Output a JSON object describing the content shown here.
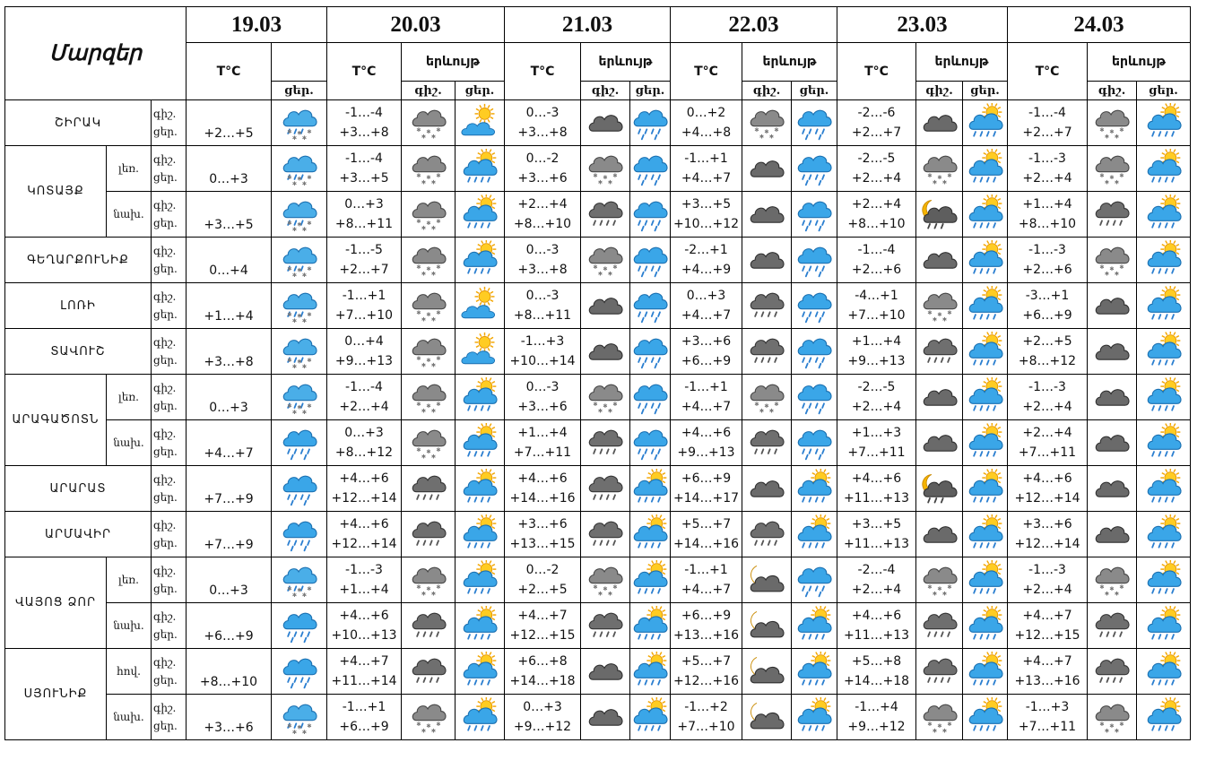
{
  "corner_label": "Մարզեր",
  "temp_header": "T°C",
  "weather_header": "երևույթ",
  "night_short": "գիշ.",
  "day_short": "ցեր.",
  "dates": [
    "19.03",
    "20.03",
    "21.03",
    "22.03",
    "23.03",
    "24.03"
  ],
  "rows": [
    {
      "region": "ՇԻՐԱԿ",
      "zone": "",
      "tod": [
        "գիշ.",
        "ցեր."
      ],
      "d1": {
        "t": "+2…+5",
        "icon": "snow-rain-icon"
      },
      "days": [
        {
          "tn": "-1…-4",
          "td": "+3…+8",
          "n": "snow-cloud-icon",
          "d": "sun-cloud-icon"
        },
        {
          "tn": "0…-3",
          "td": "+3…+8",
          "n": "dark-cloud-icon",
          "d": "rain-icon"
        },
        {
          "tn": "0…+2",
          "td": "+4…+8",
          "n": "snow-cloud-icon",
          "d": "rain-icon"
        },
        {
          "tn": "-2…-6",
          "td": "+2…+7",
          "n": "dark-cloud-icon",
          "d": "sun-rain-icon"
        },
        {
          "tn": "-1…-4",
          "td": "+2…+7",
          "n": "snow-cloud-icon",
          "d": "sun-rain-icon"
        }
      ]
    },
    {
      "region": "ԿՈՏԱՅՔ",
      "zone": "լեռ.",
      "tod": [
        "գիշ.",
        "ցեր."
      ],
      "d1": {
        "t": "0…+3",
        "icon": "snow-rain-icon"
      },
      "days": [
        {
          "tn": "-1…-4",
          "td": "+3…+5",
          "n": "snow-cloud-icon",
          "d": "sun-rain-icon"
        },
        {
          "tn": "0…-2",
          "td": "+3…+6",
          "n": "snow-cloud-icon",
          "d": "rain-icon"
        },
        {
          "tn": "-1…+1",
          "td": "+4…+7",
          "n": "dark-cloud-icon",
          "d": "rain-icon"
        },
        {
          "tn": "-2…-5",
          "td": "+2…+4",
          "n": "snow-cloud-icon",
          "d": "sun-rain-icon"
        },
        {
          "tn": "-1…-3",
          "td": "+2…+4",
          "n": "snow-cloud-icon",
          "d": "sun-rain-icon"
        }
      ]
    },
    {
      "region": "",
      "zone": "նախ.",
      "tod": [
        "գիշ.",
        "ցեր."
      ],
      "d1": {
        "t": "+3…+5",
        "icon": "snow-rain-icon"
      },
      "days": [
        {
          "tn": "0…+3",
          "td": "+8…+11",
          "n": "snow-cloud-icon",
          "d": "sun-rain-icon"
        },
        {
          "tn": "+2…+4",
          "td": "+8…+10",
          "n": "rain-cloud-icon",
          "d": "rain-icon"
        },
        {
          "tn": "+3…+5",
          "td": "+10…+12",
          "n": "dark-cloud-icon",
          "d": "rain-icon"
        },
        {
          "tn": "+2…+4",
          "td": "+8…+10",
          "n": "moon-rain-icon",
          "d": "sun-rain-icon"
        },
        {
          "tn": "+1…+4",
          "td": "+8…+10",
          "n": "rain-cloud-icon",
          "d": "sun-rain-icon"
        }
      ]
    },
    {
      "region": "ԳԵՂԱՐՔՈՒՆԻՔ",
      "zone": "",
      "tod": [
        "գիշ.",
        "ցեր."
      ],
      "d1": {
        "t": "0…+4",
        "icon": "snow-rain-icon"
      },
      "days": [
        {
          "tn": "-1…-5",
          "td": "+2…+7",
          "n": "snow-cloud-icon",
          "d": "sun-rain-icon"
        },
        {
          "tn": "0…-3",
          "td": "+3…+8",
          "n": "snow-cloud-icon",
          "d": "rain-icon"
        },
        {
          "tn": "-2…+1",
          "td": "+4…+9",
          "n": "dark-cloud-icon",
          "d": "rain-icon"
        },
        {
          "tn": "-1…-4",
          "td": "+2…+6",
          "n": "dark-cloud-icon",
          "d": "sun-rain-icon"
        },
        {
          "tn": "-1…-3",
          "td": "+2…+6",
          "n": "snow-cloud-icon",
          "d": "sun-rain-icon"
        }
      ]
    },
    {
      "region": "ԼՈՌԻ",
      "zone": "",
      "tod": [
        "գիշ.",
        "ցեր."
      ],
      "d1": {
        "t": "+1…+4",
        "icon": "snow-rain-icon"
      },
      "days": [
        {
          "tn": "-1…+1",
          "td": "+7…+10",
          "n": "snow-cloud-icon",
          "d": "sun-cloud-icon"
        },
        {
          "tn": "0…-3",
          "td": "+8…+11",
          "n": "dark-cloud-icon",
          "d": "rain-icon"
        },
        {
          "tn": "0…+3",
          "td": "+4…+7",
          "n": "rain-cloud-icon",
          "d": "rain-icon"
        },
        {
          "tn": "-4…+1",
          "td": "+7…+10",
          "n": "snow-cloud-icon",
          "d": "sun-rain-icon"
        },
        {
          "tn": "-3…+1",
          "td": "+6…+9",
          "n": "dark-cloud-icon",
          "d": "sun-rain-icon"
        }
      ]
    },
    {
      "region": "ՏԱՎՈՒՇ",
      "zone": "",
      "tod": [
        "գիշ.",
        "ցեր."
      ],
      "d1": {
        "t": "+3…+8",
        "icon": "snow-rain-icon"
      },
      "days": [
        {
          "tn": "0…+4",
          "td": "+9…+13",
          "n": "snow-cloud-icon",
          "d": "sun-cloud-icon"
        },
        {
          "tn": "-1…+3",
          "td": "+10…+14",
          "n": "dark-cloud-icon",
          "d": "rain-icon"
        },
        {
          "tn": "+3…+6",
          "td": "+6…+9",
          "n": "rain-cloud-icon",
          "d": "rain-icon"
        },
        {
          "tn": "+1…+4",
          "td": "+9…+13",
          "n": "rain-cloud-icon",
          "d": "sun-rain-icon"
        },
        {
          "tn": "+2…+5",
          "td": "+8…+12",
          "n": "dark-cloud-icon",
          "d": "sun-rain-icon"
        }
      ]
    },
    {
      "region": "ԱՐԱԳԱԾՈՏՆ",
      "zone": "լեռ.",
      "tod": [
        "գիշ.",
        "ցեր."
      ],
      "d1": {
        "t": "0…+3",
        "icon": "snow-rain-icon"
      },
      "days": [
        {
          "tn": "-1…-4",
          "td": "+2…+4",
          "n": "snow-cloud-icon",
          "d": "sun-rain-icon"
        },
        {
          "tn": "0…-3",
          "td": "+3…+6",
          "n": "snow-cloud-icon",
          "d": "rain-icon"
        },
        {
          "tn": "-1…+1",
          "td": "+4…+7",
          "n": "snow-cloud-icon",
          "d": "rain-icon"
        },
        {
          "tn": "-2…-5",
          "td": "+2…+4",
          "n": "dark-cloud-icon",
          "d": "sun-rain-icon"
        },
        {
          "tn": "-1…-3",
          "td": "+2…+4",
          "n": "dark-cloud-icon",
          "d": "sun-rain-icon"
        }
      ]
    },
    {
      "region": "",
      "zone": "նախ.",
      "tod": [
        "գիշ.",
        "ցեր."
      ],
      "d1": {
        "t": "+4…+7",
        "icon": "rain-icon"
      },
      "days": [
        {
          "tn": "0…+3",
          "td": "+8…+12",
          "n": "snow-cloud-icon",
          "d": "sun-rain-icon"
        },
        {
          "tn": "+1…+4",
          "td": "+7…+11",
          "n": "rain-cloud-icon",
          "d": "rain-icon"
        },
        {
          "tn": "+4…+6",
          "td": "+9…+13",
          "n": "rain-cloud-icon",
          "d": "rain-icon"
        },
        {
          "tn": "+1…+3",
          "td": "+7…+11",
          "n": "dark-cloud-icon",
          "d": "sun-rain-icon"
        },
        {
          "tn": "+2…+4",
          "td": "+7…+11",
          "n": "dark-cloud-icon",
          "d": "sun-rain-icon"
        }
      ]
    },
    {
      "region": "ԱՐԱՐԱՏ",
      "zone": "",
      "tod": [
        "գիշ.",
        "ցեր."
      ],
      "d1": {
        "t": "+7…+9",
        "icon": "rain-icon"
      },
      "days": [
        {
          "tn": "+4…+6",
          "td": "+12…+14",
          "n": "rain-cloud-icon",
          "d": "sun-rain-icon"
        },
        {
          "tn": "+4…+6",
          "td": "+14…+16",
          "n": "rain-cloud-icon",
          "d": "sun-rain-icon"
        },
        {
          "tn": "+6…+9",
          "td": "+14…+17",
          "n": "dark-cloud-icon",
          "d": "sun-rain-icon"
        },
        {
          "tn": "+4…+6",
          "td": "+11…+13",
          "n": "moon-rain-icon",
          "d": "sun-rain-icon"
        },
        {
          "tn": "+4…+6",
          "td": "+12…+14",
          "n": "dark-cloud-icon",
          "d": "sun-rain-icon"
        }
      ]
    },
    {
      "region": "ԱՐՄԱՎԻՐ",
      "zone": "",
      "tod": [
        "գիշ.",
        "ցեր."
      ],
      "d1": {
        "t": "+7…+9",
        "icon": "rain-icon"
      },
      "days": [
        {
          "tn": "+4…+6",
          "td": "+12…+14",
          "n": "rain-cloud-icon",
          "d": "sun-rain-icon"
        },
        {
          "tn": "+3…+6",
          "td": "+13…+15",
          "n": "rain-cloud-icon",
          "d": "sun-rain-icon"
        },
        {
          "tn": "+5…+7",
          "td": "+14…+16",
          "n": "rain-cloud-icon",
          "d": "sun-rain-icon"
        },
        {
          "tn": "+3…+5",
          "td": "+11…+13",
          "n": "dark-cloud-icon",
          "d": "sun-rain-icon"
        },
        {
          "tn": "+3…+6",
          "td": "+12…+14",
          "n": "dark-cloud-icon",
          "d": "sun-rain-icon"
        }
      ]
    },
    {
      "region": "ՎԱՅՈՑ ՁՈՐ",
      "zone": "լեռ.",
      "tod": [
        "գիշ.",
        "ցեր."
      ],
      "d1": {
        "t": "0…+3",
        "icon": "snow-rain-icon"
      },
      "days": [
        {
          "tn": "-1…-3",
          "td": "+1…+4",
          "n": "snow-cloud-icon",
          "d": "sun-rain-icon"
        },
        {
          "tn": "0…-2",
          "td": "+2…+5",
          "n": "snow-cloud-icon",
          "d": "sun-rain-icon"
        },
        {
          "tn": "-1…+1",
          "td": "+4…+7",
          "n": "moon-cloud-icon",
          "d": "rain-icon"
        },
        {
          "tn": "-2…-4",
          "td": "+2…+4",
          "n": "snow-cloud-icon",
          "d": "sun-rain-icon"
        },
        {
          "tn": "-1…-3",
          "td": "+2…+4",
          "n": "snow-cloud-icon",
          "d": "sun-rain-icon"
        }
      ]
    },
    {
      "region": "",
      "zone": "նախ.",
      "tod": [
        "գիշ.",
        "ցեր."
      ],
      "d1": {
        "t": "+6…+9",
        "icon": "rain-icon"
      },
      "days": [
        {
          "tn": "+4…+6",
          "td": "+10…+13",
          "n": "rain-cloud-icon",
          "d": "sun-rain-icon"
        },
        {
          "tn": "+4…+7",
          "td": "+12…+15",
          "n": "rain-cloud-icon",
          "d": "sun-rain-icon"
        },
        {
          "tn": "+6…+9",
          "td": "+13…+16",
          "n": "moon-cloud-icon",
          "d": "sun-rain-icon"
        },
        {
          "tn": "+4…+6",
          "td": "+11…+13",
          "n": "rain-cloud-icon",
          "d": "sun-rain-icon"
        },
        {
          "tn": "+4…+7",
          "td": "+12…+15",
          "n": "rain-cloud-icon",
          "d": "sun-rain-icon"
        }
      ]
    },
    {
      "region": "ՍՅՈՒՆԻՔ",
      "zone": "հով.",
      "tod": [
        "գիշ.",
        "ցեր."
      ],
      "d1": {
        "t": "+8…+10",
        "icon": "rain-icon"
      },
      "days": [
        {
          "tn": "+4…+7",
          "td": "+11…+14",
          "n": "rain-cloud-icon",
          "d": "sun-rain-icon"
        },
        {
          "tn": "+6…+8",
          "td": "+14…+18",
          "n": "dark-cloud-icon",
          "d": "sun-rain-icon"
        },
        {
          "tn": "+5…+7",
          "td": "+12…+16",
          "n": "moon-cloud-icon",
          "d": "sun-rain-icon"
        },
        {
          "tn": "+5…+8",
          "td": "+14…+18",
          "n": "rain-cloud-icon",
          "d": "sun-rain-icon"
        },
        {
          "tn": "+4…+7",
          "td": "+13…+16",
          "n": "rain-cloud-icon",
          "d": "sun-rain-icon"
        }
      ]
    },
    {
      "region": "",
      "zone": "նախ.",
      "tod": [
        "գիշ.",
        "ցեր."
      ],
      "d1": {
        "t": "+3…+6",
        "icon": "snow-rain-icon"
      },
      "days": [
        {
          "tn": "-1…+1",
          "td": "+6…+9",
          "n": "snow-cloud-icon",
          "d": "sun-rain-icon"
        },
        {
          "tn": "0…+3",
          "td": "+9…+12",
          "n": "dark-cloud-icon",
          "d": "sun-rain-icon"
        },
        {
          "tn": "-1…+2",
          "td": "+7…+10",
          "n": "moon-cloud-icon",
          "d": "sun-rain-icon"
        },
        {
          "tn": "-1…+4",
          "td": "+9…+12",
          "n": "snow-cloud-icon",
          "d": "sun-rain-icon"
        },
        {
          "tn": "-1…+3",
          "td": "+7…+11",
          "n": "snow-cloud-icon",
          "d": "sun-rain-icon"
        }
      ]
    }
  ]
}
